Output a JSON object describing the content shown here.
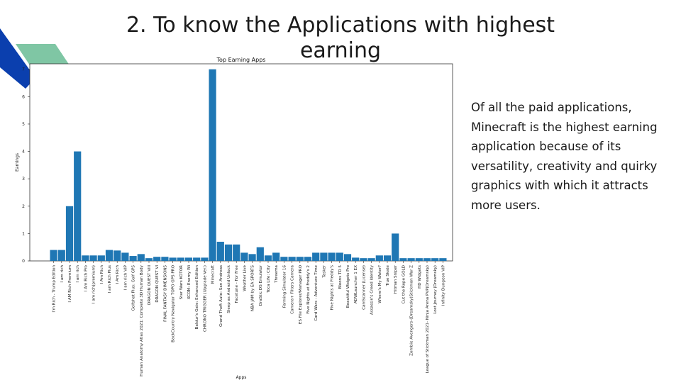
{
  "slide": {
    "title": "2. To know the Applications with highest earning",
    "body_text": "Of all the paid applications, Minecraft is the highest earning application because of its versatility, creativity and quirky graphics with which it attracts more users."
  },
  "colors": {
    "bar": "#1f77b4",
    "accent_blue": "#0b3fae",
    "accent_green": "#7fc6a4"
  },
  "chart_data": {
    "type": "bar",
    "title": "Top Earning Apps",
    "xlabel": "Apps",
    "ylabel": "Earnings",
    "ylim": [
      0,
      7.2
    ],
    "yticks": [
      0,
      1,
      2,
      3,
      4,
      5,
      6,
      7
    ],
    "categories": [
      "I'm Rich - Trump Edition",
      "I am rich",
      "I AM Rich Premium",
      "I am rich",
      "I Am Rich Pro",
      "I am rich(premium)",
      "I Am Rich",
      "I am Rich Plus",
      "I Am Rich",
      "I am rich VIP",
      "Golfshot Plus: Golf GPS",
      "Human Anatomy Atlas 2021: Complete 3D Human Body",
      "DRAGON QUEST VIII",
      "DRAGON QUEST VI",
      "FINAL FANTASY DIMENSIONS",
      "BackCountry Navigator TOPO GPS PRO",
      "Star Wars KOTOR",
      "XCOM: Enemy Wi",
      "Baldur's Gate: Enhanced Edition",
      "CHRONO TRIGGER (Upgrade Ver.)",
      "Minecraft",
      "Grand Theft Auto: San Andreas",
      "Sleep as Android Unlock",
      "Facetune - For Free",
      "Weather Live",
      "NBA JAM by EA SPORTS",
      "DraStic DS Emulator",
      "Toca Life: City",
      "Threema",
      "Farming Simulator 16",
      "Camera+ Filters Camera",
      "ES File Explorer/Manager PRO",
      "Five Nights at Freddy's 2",
      "Card Wars - Adventure Time",
      "Tasker",
      "Five Nights at Freddy's",
      "Bloons TD 5",
      "Beautiful Widgets Pro",
      "ADWLauncher 1 EX",
      "CamScanner (License)",
      "Assassin's Creed Identity",
      "Where's My Water?",
      "True Skate",
      "Hitman Sniper",
      "Cut the Rope GOLD",
      "Zombie Avengers-(Dreamsky)Stickman War Z",
      "HD Widgets",
      "League of Stickman 2021- Ninja Arena PVP(Dreamsky)",
      "Lost Journey (Dreamsky)",
      "Infinity Dungeon VIP"
    ],
    "values": [
      0.4,
      0.4,
      2.0,
      4.0,
      0.2,
      0.2,
      0.2,
      0.4,
      0.38,
      0.3,
      0.18,
      0.25,
      0.1,
      0.15,
      0.15,
      0.12,
      0.12,
      0.12,
      0.12,
      0.12,
      7.0,
      0.7,
      0.6,
      0.6,
      0.3,
      0.25,
      0.5,
      0.2,
      0.3,
      0.15,
      0.15,
      0.15,
      0.15,
      0.3,
      0.3,
      0.3,
      0.3,
      0.25,
      0.12,
      0.1,
      0.1,
      0.2,
      0.2,
      1.0,
      0.1,
      0.1,
      0.1,
      0.1,
      0.1,
      0.1
    ]
  }
}
